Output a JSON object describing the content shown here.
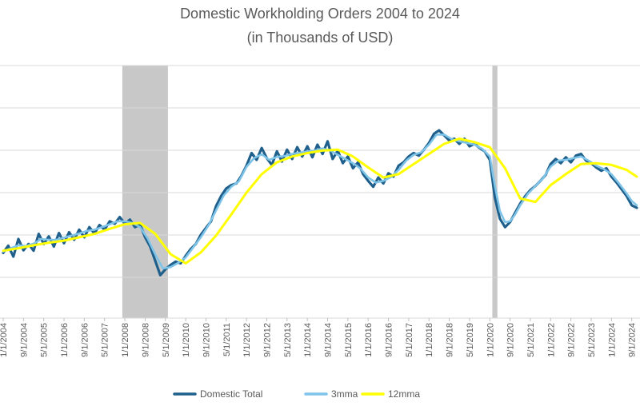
{
  "chart_data": {
    "type": "line",
    "title": "Domestic Workholding Orders 2004 to 2024",
    "subtitle": "(in Thousands of USD)",
    "xlabel": "",
    "ylabel": "",
    "x_ticks": [
      "1/1/2004",
      "9/1/2004",
      "5/1/2005",
      "1/1/2006",
      "9/1/2006",
      "5/1/2007",
      "1/1/2008",
      "9/1/2008",
      "5/1/2009",
      "1/1/2010",
      "9/1/2010",
      "5/1/2011",
      "1/1/2012",
      "9/1/2012",
      "5/1/2013",
      "1/1/2014",
      "9/1/2014",
      "5/1/2015",
      "1/1/2016",
      "9/1/2016",
      "5/1/2017",
      "1/1/2018",
      "9/1/2018",
      "5/1/2019",
      "1/1/2020",
      "9/1/2020",
      "5/1/2021",
      "1/1/2022",
      "9/1/2022",
      "5/1/2023",
      "1/1/2024",
      "9/1/2024"
    ],
    "x_range": [
      "1/1/2004",
      "11/1/2024"
    ],
    "y_gridlines": 7,
    "y_tick_labels_shown": false,
    "grid": true,
    "legend_position": "bottom",
    "recession_shading": [
      {
        "start": "12/1/2007",
        "end": "6/1/2009",
        "color": "#c8c8c8"
      },
      {
        "start": "2/1/2020",
        "end": "4/1/2020",
        "color": "#c8c8c8"
      }
    ],
    "series": [
      {
        "name": "Domestic Total",
        "color": "#1f5f8b",
        "points": [
          [
            "1/1/2004",
            30.5
          ],
          [
            "3/1/2004",
            32.2
          ],
          [
            "5/1/2004",
            29.6
          ],
          [
            "7/1/2004",
            33.8
          ],
          [
            "9/1/2004",
            31.1
          ],
          [
            "11/1/2004",
            32.6
          ],
          [
            "1/1/2005",
            31.0
          ],
          [
            "3/1/2005",
            35.0
          ],
          [
            "5/1/2005",
            32.6
          ],
          [
            "7/1/2005",
            34.4
          ],
          [
            "9/1/2005",
            32.0
          ],
          [
            "11/1/2005",
            35.2
          ],
          [
            "1/1/2006",
            32.8
          ],
          [
            "3/1/2006",
            35.4
          ],
          [
            "5/1/2006",
            33.6
          ],
          [
            "7/1/2006",
            36.0
          ],
          [
            "9/1/2006",
            34.2
          ],
          [
            "11/1/2006",
            36.6
          ],
          [
            "1/1/2007",
            35.1
          ],
          [
            "3/1/2007",
            37.1
          ],
          [
            "5/1/2007",
            36.0
          ],
          [
            "7/1/2007",
            38.0
          ],
          [
            "9/1/2007",
            37.4
          ],
          [
            "11/1/2007",
            39.0
          ],
          [
            "1/1/2008",
            37.4
          ],
          [
            "3/1/2008",
            38.4
          ],
          [
            "5/1/2008",
            36.6
          ],
          [
            "7/1/2008",
            37.2
          ],
          [
            "9/1/2008",
            34.2
          ],
          [
            "11/1/2008",
            32.0
          ],
          [
            "1/1/2009",
            28.6
          ],
          [
            "3/1/2009",
            25.2
          ],
          [
            "5/1/2009",
            26.6
          ],
          [
            "7/1/2009",
            27.6
          ],
          [
            "9/1/2009",
            28.4
          ],
          [
            "11/1/2009",
            28.0
          ],
          [
            "1/1/2010",
            29.8
          ],
          [
            "3/1/2010",
            31.4
          ],
          [
            "5/1/2010",
            32.6
          ],
          [
            "7/1/2010",
            34.8
          ],
          [
            "9/1/2010",
            36.4
          ],
          [
            "11/1/2010",
            38.0
          ],
          [
            "1/1/2011",
            41.6
          ],
          [
            "3/1/2011",
            44.0
          ],
          [
            "5/1/2011",
            45.8
          ],
          [
            "7/1/2011",
            46.6
          ],
          [
            "9/1/2011",
            47.0
          ],
          [
            "11/1/2011",
            48.8
          ],
          [
            "1/1/2012",
            51.2
          ],
          [
            "3/1/2012",
            54.2
          ],
          [
            "5/1/2012",
            52.6
          ],
          [
            "7/1/2012",
            55.4
          ],
          [
            "9/1/2012",
            53.0
          ],
          [
            "11/1/2012",
            51.4
          ],
          [
            "1/1/2013",
            54.6
          ],
          [
            "3/1/2013",
            52.2
          ],
          [
            "5/1/2013",
            55.0
          ],
          [
            "7/1/2013",
            52.8
          ],
          [
            "9/1/2013",
            55.6
          ],
          [
            "11/1/2013",
            53.4
          ],
          [
            "1/1/2014",
            55.8
          ],
          [
            "3/1/2014",
            53.2
          ],
          [
            "5/1/2014",
            56.2
          ],
          [
            "7/1/2014",
            54.0
          ],
          [
            "9/1/2014",
            57.0
          ],
          [
            "11/1/2014",
            52.8
          ],
          [
            "1/1/2015",
            54.8
          ],
          [
            "3/1/2015",
            51.8
          ],
          [
            "5/1/2015",
            53.4
          ],
          [
            "7/1/2015",
            50.6
          ],
          [
            "9/1/2015",
            52.0
          ],
          [
            "11/1/2015",
            49.2
          ],
          [
            "1/1/2016",
            47.6
          ],
          [
            "3/1/2016",
            46.2
          ],
          [
            "5/1/2016",
            48.4
          ],
          [
            "7/1/2016",
            47.0
          ],
          [
            "9/1/2016",
            49.4
          ],
          [
            "11/1/2016",
            48.6
          ],
          [
            "1/1/2017",
            51.2
          ],
          [
            "3/1/2017",
            52.0
          ],
          [
            "5/1/2017",
            53.4
          ],
          [
            "7/1/2017",
            54.2
          ],
          [
            "9/1/2017",
            53.6
          ],
          [
            "11/1/2017",
            55.0
          ],
          [
            "1/1/2018",
            56.6
          ],
          [
            "3/1/2018",
            58.8
          ],
          [
            "5/1/2018",
            59.6
          ],
          [
            "7/1/2018",
            58.4
          ],
          [
            "9/1/2018",
            57.2
          ],
          [
            "11/1/2018",
            57.6
          ],
          [
            "1/1/2019",
            56.4
          ],
          [
            "3/1/2019",
            57.6
          ],
          [
            "5/1/2019",
            55.8
          ],
          [
            "7/1/2019",
            56.4
          ],
          [
            "9/1/2019",
            55.4
          ],
          [
            "11/1/2019",
            54.6
          ],
          [
            "1/1/2020",
            52.6
          ],
          [
            "3/1/2020",
            43.6
          ],
          [
            "5/1/2020",
            38.6
          ],
          [
            "7/1/2020",
            36.6
          ],
          [
            "9/1/2020",
            37.8
          ],
          [
            "11/1/2020",
            40.0
          ],
          [
            "1/1/2021",
            42.2
          ],
          [
            "3/1/2021",
            44.0
          ],
          [
            "5/1/2021",
            45.4
          ],
          [
            "7/1/2021",
            46.4
          ],
          [
            "9/1/2021",
            47.6
          ],
          [
            "11/1/2021",
            49.0
          ],
          [
            "1/1/2022",
            51.6
          ],
          [
            "3/1/2022",
            52.8
          ],
          [
            "5/1/2022",
            51.8
          ],
          [
            "7/1/2022",
            53.2
          ],
          [
            "9/1/2022",
            52.0
          ],
          [
            "11/1/2022",
            53.6
          ],
          [
            "1/1/2023",
            54.0
          ],
          [
            "3/1/2023",
            52.4
          ],
          [
            "5/1/2023",
            51.8
          ],
          [
            "7/1/2023",
            50.8
          ],
          [
            "9/1/2023",
            50.0
          ],
          [
            "11/1/2023",
            50.6
          ],
          [
            "1/1/2024",
            48.6
          ],
          [
            "3/1/2024",
            47.2
          ],
          [
            "5/1/2024",
            45.6
          ],
          [
            "7/1/2024",
            44.0
          ],
          [
            "9/1/2024",
            41.8
          ],
          [
            "11/1/2024",
            41.2
          ]
        ]
      },
      {
        "name": "3mma",
        "color": "#7ec4e8",
        "points": [
          [
            "1/1/2004",
            30.8
          ],
          [
            "4/1/2004",
            31.6
          ],
          [
            "7/1/2004",
            32.3
          ],
          [
            "10/1/2004",
            32.1
          ],
          [
            "1/1/2005",
            32.7
          ],
          [
            "4/1/2005",
            33.8
          ],
          [
            "7/1/2005",
            33.6
          ],
          [
            "10/1/2005",
            33.6
          ],
          [
            "1/1/2006",
            34.1
          ],
          [
            "4/1/2006",
            34.6
          ],
          [
            "7/1/2006",
            35.1
          ],
          [
            "10/1/2006",
            35.7
          ],
          [
            "1/1/2007",
            36.0
          ],
          [
            "4/1/2007",
            36.6
          ],
          [
            "7/1/2007",
            37.3
          ],
          [
            "10/1/2007",
            38.0
          ],
          [
            "1/1/2008",
            38.0
          ],
          [
            "4/1/2008",
            37.6
          ],
          [
            "7/1/2008",
            36.6
          ],
          [
            "10/1/2008",
            33.9
          ],
          [
            "1/1/2009",
            30.1
          ],
          [
            "4/1/2009",
            26.8
          ],
          [
            "7/1/2009",
            27.1
          ],
          [
            "10/1/2009",
            28.1
          ],
          [
            "1/1/2010",
            29.4
          ],
          [
            "4/1/2010",
            31.8
          ],
          [
            "7/1/2010",
            34.2
          ],
          [
            "10/1/2010",
            37.0
          ],
          [
            "1/1/2011",
            40.6
          ],
          [
            "4/1/2011",
            44.1
          ],
          [
            "7/1/2011",
            46.2
          ],
          [
            "10/1/2011",
            47.5
          ],
          [
            "1/1/2012",
            50.9
          ],
          [
            "4/1/2012",
            53.0
          ],
          [
            "7/1/2012",
            53.9
          ],
          [
            "10/1/2012",
            52.6
          ],
          [
            "1/1/2013",
            53.3
          ],
          [
            "4/1/2013",
            53.5
          ],
          [
            "7/1/2013",
            54.0
          ],
          [
            "10/1/2013",
            54.3
          ],
          [
            "1/1/2014",
            54.6
          ],
          [
            "4/1/2014",
            54.8
          ],
          [
            "7/1/2014",
            55.3
          ],
          [
            "10/1/2014",
            54.8
          ],
          [
            "1/1/2015",
            53.8
          ],
          [
            "4/1/2015",
            52.8
          ],
          [
            "7/1/2015",
            51.8
          ],
          [
            "10/1/2015",
            50.5
          ],
          [
            "1/1/2016",
            48.4
          ],
          [
            "4/1/2016",
            47.2
          ],
          [
            "7/1/2016",
            47.6
          ],
          [
            "10/1/2016",
            48.5
          ],
          [
            "1/1/2017",
            50.2
          ],
          [
            "4/1/2017",
            52.4
          ],
          [
            "7/1/2017",
            53.8
          ],
          [
            "10/1/2017",
            54.4
          ],
          [
            "1/1/2018",
            56.2
          ],
          [
            "4/1/2018",
            58.6
          ],
          [
            "7/1/2018",
            58.6
          ],
          [
            "10/1/2018",
            57.5
          ],
          [
            "1/1/2019",
            57.0
          ],
          [
            "4/1/2019",
            56.6
          ],
          [
            "7/1/2019",
            56.2
          ],
          [
            "10/1/2019",
            55.2
          ],
          [
            "1/1/2020",
            53.4
          ],
          [
            "3/1/2020",
            46.4
          ],
          [
            "5/1/2020",
            40.4
          ],
          [
            "7/1/2020",
            37.8
          ],
          [
            "9/1/2020",
            38.0
          ],
          [
            "11/1/2020",
            39.6
          ],
          [
            "1/1/2021",
            41.8
          ],
          [
            "4/1/2021",
            44.5
          ],
          [
            "7/1/2021",
            46.4
          ],
          [
            "10/1/2021",
            48.2
          ],
          [
            "1/1/2022",
            51.0
          ],
          [
            "4/1/2022",
            52.4
          ],
          [
            "7/1/2022",
            52.6
          ],
          [
            "10/1/2022",
            53.0
          ],
          [
            "1/1/2023",
            53.4
          ],
          [
            "4/1/2023",
            52.4
          ],
          [
            "7/1/2023",
            51.2
          ],
          [
            "10/1/2023",
            50.4
          ],
          [
            "1/1/2024",
            49.2
          ],
          [
            "4/1/2024",
            47.0
          ],
          [
            "7/1/2024",
            44.6
          ],
          [
            "9/1/2024",
            42.8
          ],
          [
            "11/1/2024",
            41.8
          ]
        ]
      },
      {
        "name": "12mma",
        "color": "#ffff00",
        "points": [
          [
            "1/1/2004",
            31.0
          ],
          [
            "7/1/2004",
            31.6
          ],
          [
            "1/1/2005",
            32.3
          ],
          [
            "7/1/2005",
            32.9
          ],
          [
            "1/1/2006",
            33.4
          ],
          [
            "7/1/2006",
            34.2
          ],
          [
            "1/1/2007",
            35.0
          ],
          [
            "7/1/2007",
            36.2
          ],
          [
            "1/1/2008",
            37.3
          ],
          [
            "7/1/2008",
            37.6
          ],
          [
            "1/1/2009",
            35.0
          ],
          [
            "7/1/2009",
            30.2
          ],
          [
            "1/1/2010",
            28.0
          ],
          [
            "7/1/2010",
            30.6
          ],
          [
            "1/1/2011",
            34.6
          ],
          [
            "7/1/2011",
            39.6
          ],
          [
            "1/1/2012",
            44.8
          ],
          [
            "7/1/2012",
            49.2
          ],
          [
            "1/1/2013",
            52.0
          ],
          [
            "7/1/2013",
            53.4
          ],
          [
            "1/1/2014",
            54.2
          ],
          [
            "7/1/2014",
            54.8
          ],
          [
            "1/1/2015",
            55.0
          ],
          [
            "7/1/2015",
            53.4
          ],
          [
            "1/1/2016",
            50.8
          ],
          [
            "7/1/2016",
            48.4
          ],
          [
            "1/1/2017",
            49.2
          ],
          [
            "7/1/2017",
            51.6
          ],
          [
            "1/1/2018",
            54.0
          ],
          [
            "7/1/2018",
            56.4
          ],
          [
            "1/1/2019",
            57.6
          ],
          [
            "7/1/2019",
            56.8
          ],
          [
            "1/1/2020",
            55.6
          ],
          [
            "7/1/2020",
            50.6
          ],
          [
            "1/1/2021",
            43.4
          ],
          [
            "7/1/2021",
            42.6
          ],
          [
            "1/1/2022",
            46.6
          ],
          [
            "7/1/2022",
            49.2
          ],
          [
            "1/1/2023",
            51.6
          ],
          [
            "7/1/2023",
            51.8
          ],
          [
            "1/1/2024",
            51.4
          ],
          [
            "7/1/2024",
            50.2
          ],
          [
            "11/1/2024",
            48.6
          ]
        ]
      }
    ],
    "ylim": [
      15,
      75
    ]
  },
  "legend": {
    "items": [
      {
        "label": "Domestic Total",
        "color": "#1f5f8b"
      },
      {
        "label": "3mma",
        "color": "#7ec4e8"
      },
      {
        "label": "12mma",
        "color": "#ffff00"
      }
    ]
  }
}
